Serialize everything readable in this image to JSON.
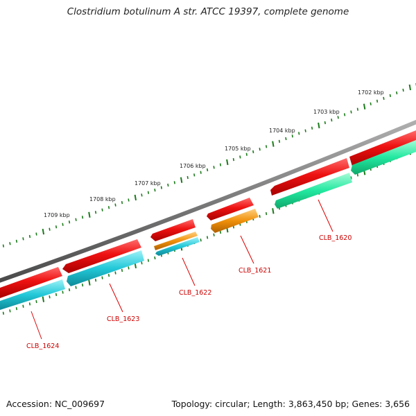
{
  "title": "Clostridium botulinum A str. ATCC 19397, complete genome",
  "footer": {
    "accession": "Accession: NC_009697",
    "summary": "Topology: circular; Length: 3,863,450 bp; Genes: 3,656"
  },
  "scale": {
    "unit": "kbp",
    "labels": [
      "1702 kbp",
      "1703 kbp",
      "1704 kbp",
      "1705 kbp",
      "1706 kbp",
      "1707 kbp",
      "1708 kbp",
      "1709 kbp"
    ],
    "color": "#1a7a1a"
  },
  "genes": [
    {
      "name": "CLB_1620",
      "color": "#cc0000"
    },
    {
      "name": "CLB_1621",
      "color": "#cc0000"
    },
    {
      "name": "CLB_1622",
      "color": "#cc0000"
    },
    {
      "name": "CLB_1623",
      "color": "#cc0000"
    },
    {
      "name": "CLB_1624",
      "color": "#cc0000"
    }
  ],
  "colors": {
    "backbone": "#7a7a7a",
    "cds": "#ee1111",
    "cds_secondary_cyan": "#22c8d8",
    "cds_secondary_green": "#22e8a0",
    "cds_secondary_orange": "#f0900a",
    "label_line": "#dd0000"
  }
}
